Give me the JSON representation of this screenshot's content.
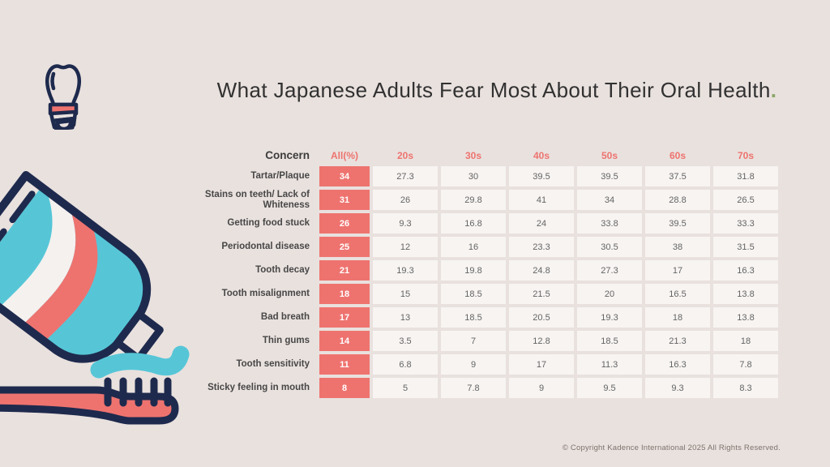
{
  "page": {
    "title": "What Japanese Adults Fear Most About Their Oral Health",
    "title_period": ".",
    "copyright": "© Copyright Kadence International 2025 All Rights Reserved."
  },
  "colors": {
    "bg": "#e9e1de",
    "coral": "#ee736f",
    "navy": "#1e2a4d",
    "teal": "#56c6d7",
    "green": "#8ba667",
    "cellbg": "#f7f4f2"
  },
  "icons": [
    {
      "name": "dental-implant-icon"
    },
    {
      "name": "toothpaste-tube-icon"
    },
    {
      "name": "toothpaste-squeeze-icon"
    },
    {
      "name": "toothbrush-icon"
    }
  ],
  "chart_data": {
    "type": "table",
    "title": "What Japanese Adults Fear Most About Their Oral Health.",
    "columns": [
      "Concern",
      "All(%)",
      "20s",
      "30s",
      "40s",
      "50s",
      "60s",
      "70s"
    ],
    "rows": [
      {
        "concern": "Tartar/Plaque",
        "all": 34,
        "by_age": [
          27.3,
          30,
          39.5,
          39.5,
          37.5,
          31.8
        ]
      },
      {
        "concern": "Stains on teeth/ Lack of Whiteness",
        "all": 31,
        "by_age": [
          26,
          29.8,
          41,
          34,
          28.8,
          26.5
        ]
      },
      {
        "concern": "Getting food stuck",
        "all": 26,
        "by_age": [
          9.3,
          16.8,
          24,
          33.8,
          39.5,
          33.3
        ]
      },
      {
        "concern": "Periodontal disease",
        "all": 25,
        "by_age": [
          12,
          16,
          23.3,
          30.5,
          38,
          31.5
        ]
      },
      {
        "concern": "Tooth decay",
        "all": 21,
        "by_age": [
          19.3,
          19.8,
          24.8,
          27.3,
          17,
          16.3
        ]
      },
      {
        "concern": "Tooth misalignment",
        "all": 18,
        "by_age": [
          15,
          18.5,
          21.5,
          20,
          16.5,
          13.8
        ]
      },
      {
        "concern": "Bad breath",
        "all": 17,
        "by_age": [
          13,
          18.5,
          20.5,
          19.3,
          18,
          13.8
        ]
      },
      {
        "concern": "Thin gums",
        "all": 14,
        "by_age": [
          3.5,
          7,
          12.8,
          18.5,
          21.3,
          18
        ]
      },
      {
        "concern": "Tooth sensitivity",
        "all": 11,
        "by_age": [
          6.8,
          9,
          17,
          11.3,
          16.3,
          7.8
        ]
      },
      {
        "concern": "Sticky feeling in mouth",
        "all": 8,
        "by_age": [
          5,
          7.8,
          9,
          9.5,
          9.3,
          8.3
        ]
      }
    ]
  }
}
